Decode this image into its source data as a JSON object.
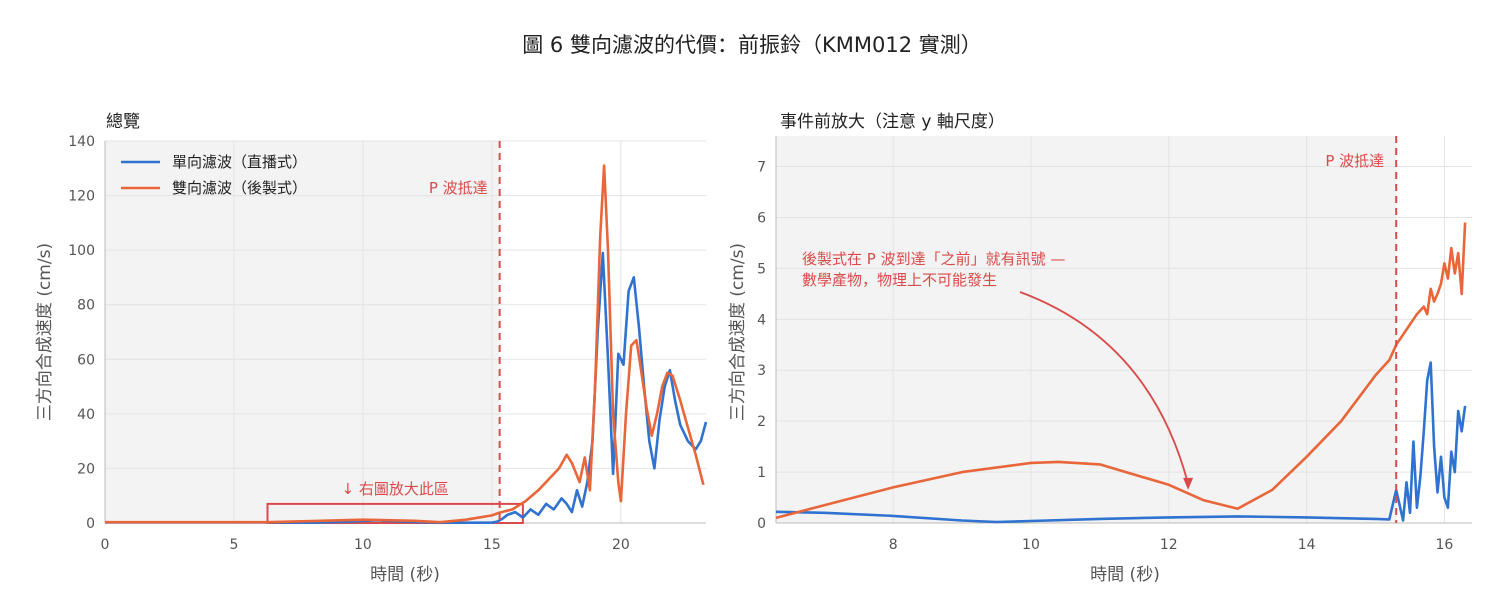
{
  "figure": {
    "title": "圖 6  雙向濾波的代價：前振鈴（KMM012 實測）"
  },
  "colors": {
    "causal": "#2f72cf",
    "zero_phase": "#e8663a",
    "marker": "#d94a4a",
    "pre_event_shade": "#f3f3f3",
    "grid": "#e3e3e3"
  },
  "chart_data": [
    {
      "type": "line",
      "subtitle": "總覽",
      "xlabel": "時間 (秒)",
      "ylabel": "三方向合成速度 (cm/s)",
      "xlim": [
        0,
        23.3
      ],
      "ylim": [
        0,
        140
      ],
      "xticks": [
        0,
        5,
        10,
        15,
        20
      ],
      "yticks": [
        0,
        20,
        40,
        60,
        80,
        100,
        120,
        140
      ],
      "grid": true,
      "legend": "top-left",
      "shade_before_p": true,
      "p_arrival": {
        "x": 15.3,
        "label": "P 波抵達"
      },
      "zoom_box": {
        "x": [
          6.3,
          16.2
        ],
        "y": [
          0,
          7
        ],
        "label": "↓ 右圖放大此區"
      },
      "series": [
        {
          "name": "單向濾波（直播式）",
          "x": [
            0,
            6.3,
            8,
            9.5,
            10.5,
            12,
            13,
            14,
            15,
            15.2,
            15.4,
            15.6,
            15.9,
            16.2,
            16.5,
            16.8,
            17.1,
            17.4,
            17.7,
            17.9,
            18.1,
            18.3,
            18.5,
            18.7,
            18.9,
            19.1,
            19.3,
            19.5,
            19.7,
            19.8,
            19.9,
            20.1,
            20.3,
            20.5,
            20.7,
            20.9,
            21.1,
            21.3,
            21.5,
            21.7,
            21.9,
            22.1,
            22.3,
            22.6,
            22.9,
            23.1,
            23.3
          ],
          "values": [
            0.2,
            0.2,
            0.1,
            0.5,
            1.0,
            0.4,
            0.1,
            0.1,
            0.1,
            0.5,
            1.5,
            3,
            4,
            2,
            5,
            3,
            7,
            5,
            9,
            7,
            4,
            12,
            6,
            15,
            30,
            70,
            99,
            60,
            18,
            40,
            62,
            58,
            85,
            90,
            72,
            50,
            30,
            20,
            38,
            50,
            56,
            45,
            36,
            30,
            27,
            30,
            37
          ]
        },
        {
          "name": "雙向濾波（後製式）",
          "x": [
            0,
            6.3,
            8,
            10,
            12,
            13,
            14,
            15,
            15.3,
            15.8,
            16.3,
            16.8,
            17.2,
            17.6,
            17.9,
            18.1,
            18.4,
            18.6,
            18.8,
            19.0,
            19.2,
            19.35,
            19.5,
            19.7,
            19.9,
            20.0,
            20.2,
            20.4,
            20.6,
            20.8,
            21.0,
            21.2,
            21.4,
            21.6,
            21.8,
            22.0,
            22.3,
            22.6,
            22.9,
            23.2
          ],
          "values": [
            0.3,
            0.3,
            0.7,
            1.2,
            0.8,
            0.3,
            1.2,
            2.8,
            3.8,
            5,
            8,
            12,
            16,
            20,
            25,
            22,
            15,
            24,
            12,
            50,
            105,
            131,
            100,
            40,
            15,
            8,
            40,
            65,
            67,
            55,
            42,
            32,
            40,
            50,
            55,
            54,
            45,
            35,
            25,
            14
          ]
        }
      ]
    },
    {
      "type": "line",
      "subtitle": "事件前放大（注意 y 軸尺度）",
      "xlabel": "時間 (秒)",
      "ylabel": "三方向合成速度 (cm/s)",
      "xlim": [
        6.3,
        16.4
      ],
      "ylim": [
        0,
        7.6
      ],
      "xticks": [
        8,
        10,
        12,
        14,
        16
      ],
      "yticks": [
        0,
        1,
        2,
        3,
        4,
        5,
        6,
        7
      ],
      "grid": true,
      "shade_before_p": true,
      "p_arrival": {
        "x": 15.3,
        "label": "P 波抵達"
      },
      "annotation": {
        "lines": [
          "後製式在 P 波到達「之前」就有訊號 —",
          "數學產物，物理上不可能發生"
        ],
        "arrow_to": {
          "x": 12.28,
          "y": 0.65
        }
      },
      "series": [
        {
          "name": "單向濾波（直播式）",
          "x": [
            6.3,
            7.0,
            8.0,
            9.0,
            9.5,
            10.0,
            11.0,
            12.0,
            13.0,
            14.0,
            15.0,
            15.2,
            15.3,
            15.4,
            15.45,
            15.5,
            15.55,
            15.6,
            15.65,
            15.7,
            15.75,
            15.8,
            15.85,
            15.9,
            15.95,
            16.0,
            16.05,
            16.1,
            16.15,
            16.2,
            16.25,
            16.3
          ],
          "values": [
            0.22,
            0.2,
            0.14,
            0.05,
            0.02,
            0.04,
            0.08,
            0.11,
            0.13,
            0.11,
            0.08,
            0.07,
            0.65,
            0.05,
            0.8,
            0.2,
            1.6,
            0.3,
            0.9,
            1.8,
            2.8,
            3.15,
            1.5,
            0.6,
            1.3,
            0.5,
            0.3,
            1.4,
            1.0,
            2.2,
            1.8,
            2.3
          ]
        },
        {
          "name": "雙向濾波（後製式）",
          "x": [
            6.3,
            7.0,
            8.0,
            9.0,
            10.0,
            10.4,
            11.0,
            12.0,
            12.5,
            13.0,
            13.5,
            14.0,
            14.5,
            15.0,
            15.2,
            15.3,
            15.4,
            15.5,
            15.6,
            15.7,
            15.75,
            15.8,
            15.85,
            15.9,
            15.95,
            16.0,
            16.05,
            16.1,
            16.15,
            16.2,
            16.25,
            16.3
          ],
          "values": [
            0.1,
            0.35,
            0.7,
            1.0,
            1.18,
            1.2,
            1.15,
            0.75,
            0.45,
            0.28,
            0.65,
            1.3,
            2.0,
            2.9,
            3.2,
            3.5,
            3.7,
            3.9,
            4.1,
            4.25,
            4.1,
            4.6,
            4.35,
            4.5,
            4.7,
            5.1,
            4.8,
            5.4,
            4.9,
            5.3,
            4.5,
            5.9
          ]
        }
      ]
    }
  ]
}
